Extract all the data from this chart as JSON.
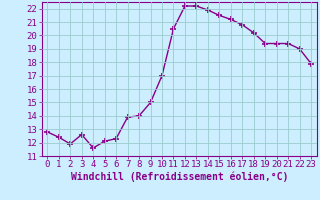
{
  "x": [
    0,
    1,
    2,
    3,
    4,
    5,
    6,
    7,
    8,
    9,
    10,
    11,
    12,
    13,
    14,
    15,
    16,
    17,
    18,
    19,
    20,
    21,
    22,
    23
  ],
  "y": [
    12.8,
    12.4,
    11.9,
    12.6,
    11.6,
    12.1,
    12.3,
    13.9,
    14.0,
    15.0,
    17.0,
    20.5,
    22.2,
    22.2,
    21.9,
    21.5,
    21.2,
    20.8,
    20.2,
    19.4,
    19.4,
    19.4,
    19.0,
    17.9
  ],
  "line_color": "#880088",
  "marker": "+",
  "markersize": 4,
  "markeredgewidth": 1.2,
  "linewidth": 1.0,
  "bg_color": "#cceeff",
  "grid_color": "#99cccc",
  "xlabel": "Windchill (Refroidissement éolien,°C)",
  "xlabel_fontsize": 7,
  "tick_fontsize": 6.5,
  "ylim": [
    11,
    22.5
  ],
  "yticks": [
    11,
    12,
    13,
    14,
    15,
    16,
    17,
    18,
    19,
    20,
    21,
    22
  ],
  "xlim": [
    -0.5,
    23.5
  ],
  "xticks": [
    0,
    1,
    2,
    3,
    4,
    5,
    6,
    7,
    8,
    9,
    10,
    11,
    12,
    13,
    14,
    15,
    16,
    17,
    18,
    19,
    20,
    21,
    22,
    23
  ]
}
